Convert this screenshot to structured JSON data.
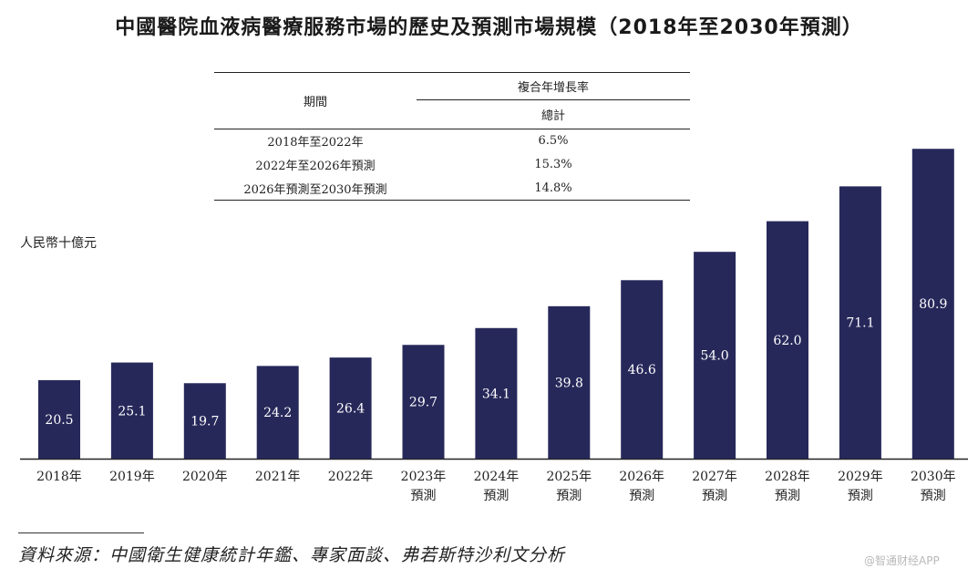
{
  "chart_data": {
    "type": "bar",
    "title": "中國醫院血液病醫療服務市場的歷史及預測市場規模（2018年至2030年預測）",
    "ylabel": "人民幣十億元",
    "xlabel": "",
    "categories": [
      [
        "2018年"
      ],
      [
        "2019年"
      ],
      [
        "2020年"
      ],
      [
        "2021年"
      ],
      [
        "2022年"
      ],
      [
        "2023年",
        "預測"
      ],
      [
        "2024年",
        "預測"
      ],
      [
        "2025年",
        "預測"
      ],
      [
        "2026年",
        "預測"
      ],
      [
        "2027年",
        "預測"
      ],
      [
        "2028年",
        "預測"
      ],
      [
        "2029年",
        "預測"
      ],
      [
        "2030年",
        "預測"
      ]
    ],
    "values": [
      20.5,
      25.1,
      19.7,
      24.2,
      26.4,
      29.7,
      34.1,
      39.8,
      46.6,
      54.0,
      62.0,
      71.1,
      80.9
    ],
    "value_labels": [
      "20.5",
      "25.1",
      "19.7",
      "24.2",
      "26.4",
      "29.7",
      "34.1",
      "39.8",
      "46.6",
      "54.0",
      "62.0",
      "71.1",
      "80.9"
    ],
    "ylim": [
      0,
      85
    ],
    "grid": false,
    "bar_color": "#27285a",
    "label_color": "#ffffff"
  },
  "cagr_table": {
    "header_period": "期間",
    "header_cagr": "複合年增長率",
    "header_total": "總計",
    "rows": [
      {
        "period": "2018年至2022年",
        "value": "6.5%"
      },
      {
        "period": "2022年至2026年預測",
        "value": "15.3%"
      },
      {
        "period": "2026年預測至2030年預測",
        "value": "14.8%"
      }
    ]
  },
  "source": "資料來源：中國衛生健康統計年鑑、專家面談、弗若斯特沙利文分析",
  "watermark": "@智通财经APP"
}
